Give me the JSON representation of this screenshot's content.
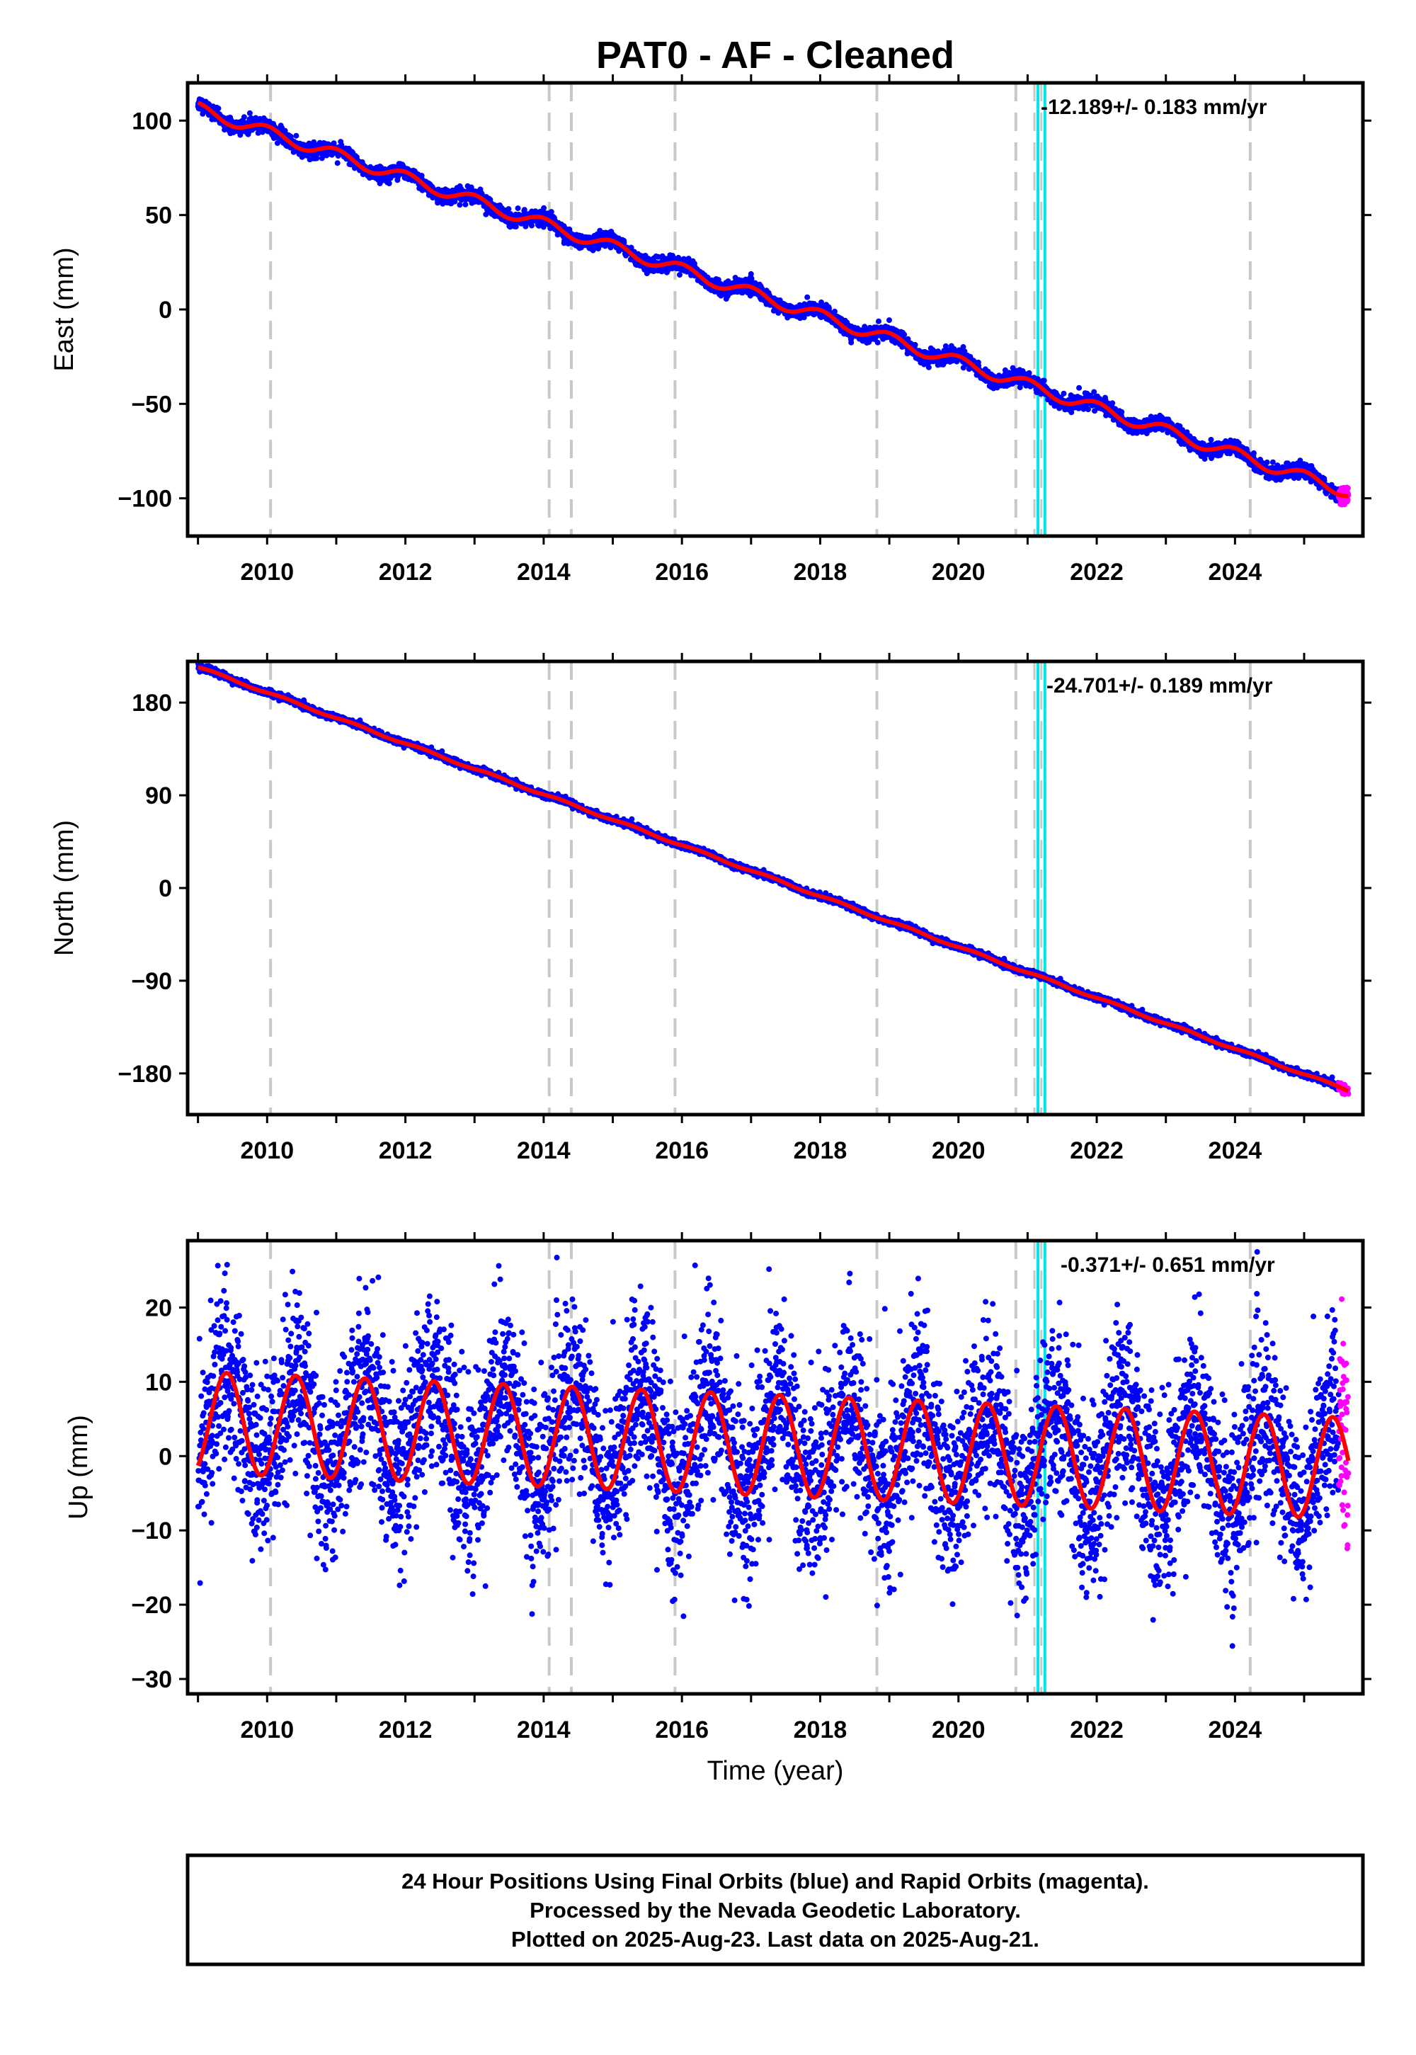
{
  "title": "PAT0  - AF - Cleaned",
  "xlabel": "Time (year)",
  "footer": {
    "line1": "24 Hour Positions Using Final Orbits (blue) and Rapid Orbits (magenta).",
    "line2": "Processed by the Nevada Geodetic Laboratory.",
    "line3": "Plotted on 2025-Aug-23. Last data on 2025-Aug-21."
  },
  "colors": {
    "final": "#0000ff",
    "rapid": "#ff00ff",
    "model": "#ff0000",
    "event": "#c8c8c8",
    "equipment": "#00e5e5"
  },
  "chart_data": [
    {
      "type": "scatter",
      "name": "east",
      "ylabel": "East (mm)",
      "rate": "-12.189+/- 0.183 mm/yr",
      "xlim": [
        2008.85,
        2025.85
      ],
      "ylim": [
        -120,
        120
      ],
      "xticks": [
        "2010",
        "2012",
        "2014",
        "2016",
        "2018",
        "2020",
        "2022",
        "2024"
      ],
      "yticks": [
        "100",
        "50",
        "0",
        "−50",
        "−100"
      ],
      "ytick_values": [
        100,
        50,
        0,
        -50,
        -100
      ],
      "model": {
        "x0": 2009.1,
        "y0": 105,
        "slope": -12.189,
        "amplitude": 3.2,
        "phase": 2.2
      },
      "scatter": 3.0,
      "time_span": [
        2009.0,
        2025.64
      ],
      "rapid_span": [
        2025.5,
        2025.64
      ]
    },
    {
      "type": "scatter",
      "name": "north",
      "ylabel": "North (mm)",
      "rate": "-24.701+/- 0.189 mm/yr",
      "xlim": [
        2008.85,
        2025.85
      ],
      "ylim": [
        -220,
        220
      ],
      "xticks": [
        "2010",
        "2012",
        "2014",
        "2016",
        "2018",
        "2020",
        "2022",
        "2024"
      ],
      "yticks": [
        "180",
        "90",
        "0",
        "−90",
        "−180"
      ],
      "ytick_values": [
        180,
        90,
        0,
        -90,
        -180
      ],
      "model": {
        "x0": 2009.1,
        "y0": 212,
        "slope": -24.701,
        "amplitude": 1.0,
        "phase": 0.5
      },
      "scatter": 2.5,
      "time_span": [
        2009.0,
        2025.64
      ],
      "rapid_span": [
        2025.5,
        2025.64
      ]
    },
    {
      "type": "scatter",
      "name": "up",
      "ylabel": "Up (mm)",
      "rate": "-0.371+/- 0.651 mm/yr",
      "xlim": [
        2008.85,
        2025.85
      ],
      "ylim": [
        -32,
        29
      ],
      "xticks": [
        "2010",
        "2012",
        "2014",
        "2016",
        "2018",
        "2020",
        "2022",
        "2024"
      ],
      "yticks": [
        "20",
        "10",
        "0",
        "−10",
        "−20",
        "−30"
      ],
      "ytick_values": [
        20,
        10,
        0,
        -10,
        -20,
        -30
      ],
      "model": {
        "x0": 2009.1,
        "y0": 4.5,
        "slope": -0.371,
        "amplitude": 6.8,
        "phase": -0.4
      },
      "scatter": 6.0,
      "time_span": [
        2009.0,
        2025.64
      ],
      "rapid_span": [
        2025.5,
        2025.64
      ]
    }
  ],
  "events": {
    "dashed_gray": [
      2010.05,
      2014.08,
      2014.4,
      2015.9,
      2018.82,
      2020.83,
      2024.22
    ],
    "cyan": [
      2021.15,
      2021.25
    ]
  }
}
